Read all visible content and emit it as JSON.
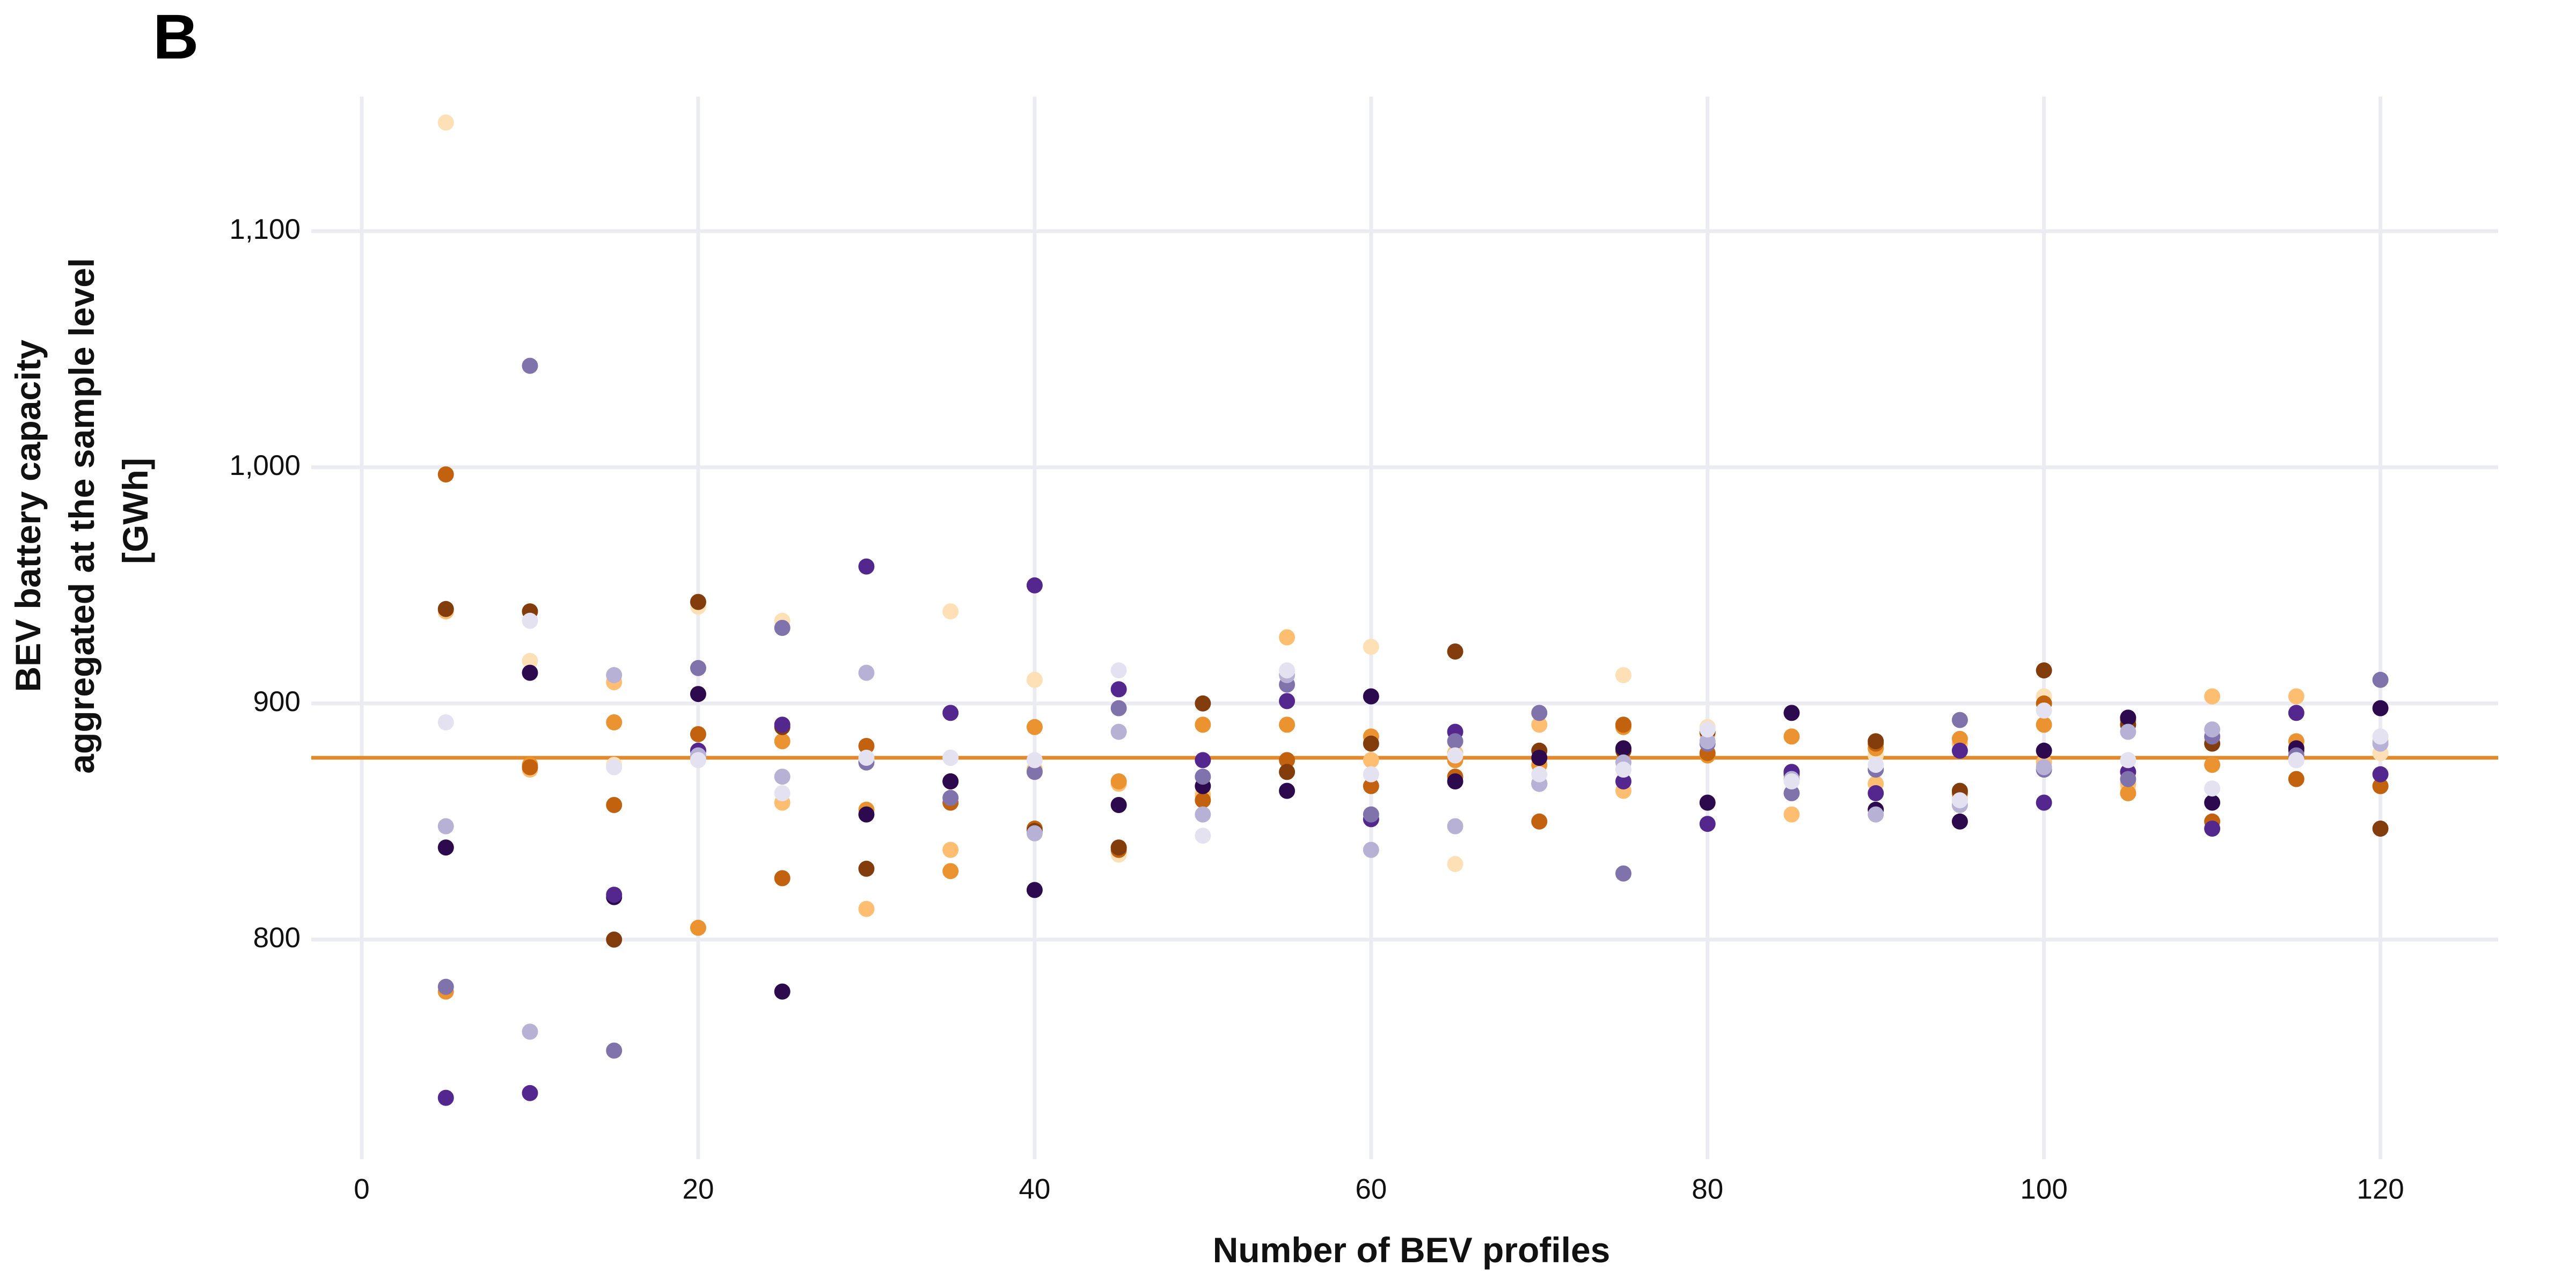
{
  "panel_label": "B",
  "chart_data": {
    "type": "scatter",
    "title": "",
    "xlabel": "Number of BEV profiles",
    "ylabel_lines": [
      "BEV battery capacity",
      "aggregated at the sample level",
      "[GWh]"
    ],
    "xlim": [
      -3,
      127
    ],
    "ylim": [
      707,
      1157
    ],
    "x_ticks": [
      0,
      20,
      40,
      60,
      80,
      100,
      120
    ],
    "x_tick_labels": [
      "0",
      "20",
      "40",
      "60",
      "80",
      "100",
      "120"
    ],
    "y_ticks": [
      800,
      900,
      1000,
      1100
    ],
    "y_tick_labels": [
      "800",
      "900",
      "1,000",
      "1,100"
    ],
    "reference_line": {
      "y": 877,
      "color": "#e08a2e"
    },
    "grid": true,
    "legend": "none",
    "series": [
      {
        "name": "s1",
        "color": "#fde0b5",
        "x": [
          5,
          10,
          15,
          20,
          25,
          30,
          35,
          40,
          45,
          50,
          55,
          60,
          65,
          70,
          75,
          80,
          85,
          90,
          95,
          100,
          105,
          110,
          115,
          120
        ],
        "y": [
          1146,
          918,
          874,
          941,
          935,
          876,
          939,
          910,
          836,
          862,
          871,
          924,
          832,
          876,
          912,
          890,
          869,
          878,
          860,
          903,
          864,
          885,
          882,
          879
        ]
      },
      {
        "name": "s2",
        "color": "#fdbe72",
        "x": [
          5,
          10,
          15,
          20,
          25,
          30,
          35,
          40,
          45,
          50,
          55,
          60,
          65,
          70,
          75,
          80,
          85,
          90,
          95,
          100,
          105,
          110,
          115,
          120
        ],
        "y": [
          939,
          872,
          909,
          877,
          858,
          813,
          838,
          872,
          866,
          861,
          928,
          876,
          879,
          891,
          863,
          887,
          853,
          866,
          883,
          875,
          866,
          903,
          903,
          884
        ]
      },
      {
        "name": "s3",
        "color": "#eb9330",
        "x": [
          5,
          10,
          15,
          20,
          25,
          30,
          35,
          40,
          45,
          50,
          55,
          60,
          65,
          70,
          75,
          80,
          85,
          90,
          95,
          100,
          105,
          110,
          115,
          120
        ],
        "y": [
          778,
          874,
          892,
          805,
          884,
          855,
          829,
          890,
          867,
          891,
          891,
          886,
          876,
          874,
          890,
          878,
          886,
          881,
          885,
          891,
          862,
          874,
          884,
          865
        ]
      },
      {
        "name": "s4",
        "color": "#c2620f",
        "x": [
          5,
          10,
          15,
          20,
          25,
          30,
          35,
          40,
          45,
          50,
          55,
          60,
          65,
          70,
          75,
          80,
          85,
          90,
          95,
          100,
          105,
          110,
          115,
          120
        ],
        "y": [
          997,
          873,
          857,
          887,
          826,
          882,
          858,
          847,
          838,
          859,
          876,
          865,
          869,
          850,
          891,
          879,
          871,
          883,
          862,
          900,
          893,
          850,
          868,
          865
        ]
      },
      {
        "name": "s5",
        "color": "#833c0c",
        "x": [
          5,
          10,
          15,
          20,
          25,
          30,
          35,
          40,
          45,
          50,
          55,
          60,
          65,
          70,
          75,
          80,
          85,
          90,
          95,
          100,
          105,
          110,
          115,
          120
        ],
        "y": [
          940,
          939,
          800,
          943,
          890,
          830,
          867,
          846,
          839,
          900,
          871,
          883,
          922,
          880,
          880,
          888,
          870,
          884,
          863,
          914,
          891,
          883,
          880,
          847
        ]
      },
      {
        "name": "s6",
        "color": "#2d0a4e",
        "x": [
          5,
          10,
          15,
          20,
          25,
          30,
          35,
          40,
          45,
          50,
          55,
          60,
          65,
          70,
          75,
          80,
          85,
          90,
          95,
          100,
          105,
          110,
          115,
          120
        ],
        "y": [
          839,
          913,
          818,
          904,
          778,
          853,
          867,
          821,
          857,
          865,
          863,
          903,
          867,
          877,
          881,
          858,
          896,
          855,
          850,
          880,
          894,
          858,
          881,
          898
        ]
      },
      {
        "name": "s7",
        "color": "#54278f",
        "x": [
          5,
          10,
          15,
          20,
          25,
          30,
          35,
          40,
          45,
          50,
          55,
          60,
          65,
          70,
          75,
          80,
          85,
          90,
          95,
          100,
          105,
          110,
          115,
          120
        ],
        "y": [
          733,
          735,
          819,
          880,
          891,
          958,
          896,
          950,
          906,
          876,
          901,
          851,
          888,
          866,
          867,
          849,
          871,
          862,
          880,
          858,
          871,
          847,
          896,
          870
        ]
      },
      {
        "name": "s8",
        "color": "#8073ac",
        "x": [
          5,
          10,
          15,
          20,
          25,
          30,
          35,
          40,
          45,
          50,
          55,
          60,
          65,
          70,
          75,
          80,
          85,
          90,
          95,
          100,
          105,
          110,
          115,
          120
        ],
        "y": [
          780,
          1043,
          753,
          915,
          932,
          875,
          860,
          871,
          898,
          869,
          908,
          853,
          884,
          896,
          828,
          883,
          862,
          872,
          893,
          872,
          868,
          886,
          878,
          910
        ]
      },
      {
        "name": "s9",
        "color": "#b8b1d6",
        "x": [
          5,
          10,
          15,
          20,
          25,
          30,
          35,
          40,
          45,
          50,
          55,
          60,
          65,
          70,
          75,
          80,
          85,
          90,
          95,
          100,
          105,
          110,
          115,
          120
        ],
        "y": [
          848,
          761,
          912,
          878,
          869,
          913,
          877,
          845,
          888,
          853,
          912,
          838,
          848,
          866,
          875,
          884,
          868,
          853,
          857,
          873,
          888,
          889,
          876,
          883
        ]
      },
      {
        "name": "s10",
        "color": "#e4e2f0",
        "x": [
          5,
          10,
          15,
          20,
          25,
          30,
          35,
          40,
          45,
          50,
          55,
          60,
          65,
          70,
          75,
          80,
          85,
          90,
          95,
          100,
          105,
          110,
          115,
          120
        ],
        "y": [
          892,
          935,
          873,
          876,
          862,
          877,
          877,
          876,
          914,
          844,
          914,
          870,
          878,
          870,
          872,
          889,
          867,
          874,
          859,
          897,
          876,
          864,
          876,
          886
        ]
      }
    ]
  }
}
